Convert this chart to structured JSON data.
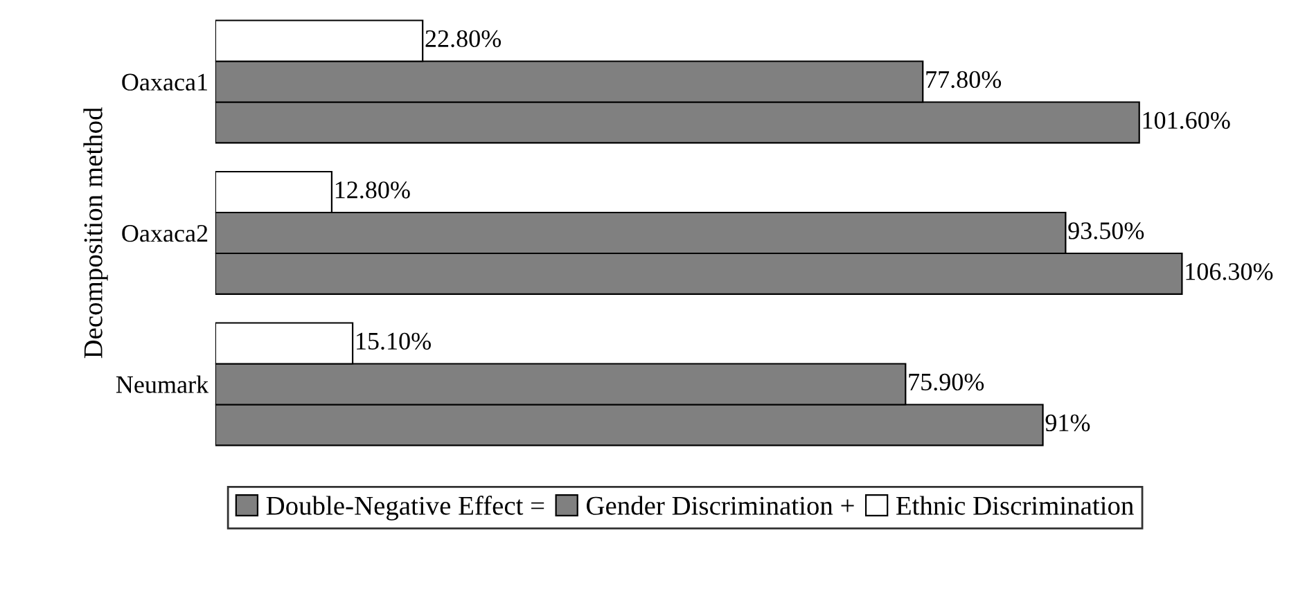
{
  "chart_data": {
    "type": "bar",
    "orientation": "horizontal",
    "ylabel": "Decomposition method",
    "categories": [
      "Oaxaca1",
      "Oaxaca2",
      "Neumark"
    ],
    "series": [
      {
        "name": "Double-Negative Effect =",
        "color": "#808080",
        "values": [
          101.6,
          106.3,
          91
        ],
        "value_labels": [
          "101.60%",
          "106.30%",
          "91%"
        ]
      },
      {
        "name": "Gender Discrimination +",
        "color": "#808080",
        "values": [
          77.8,
          93.5,
          75.9
        ],
        "value_labels": [
          "77.80%",
          "93.50%",
          "75.90%"
        ]
      },
      {
        "name": "Ethnic Discrimination",
        "color": "#ffffff",
        "values": [
          22.8,
          12.8,
          15.1
        ],
        "value_labels": [
          "22.80%",
          "12.80%",
          "15.10%"
        ]
      }
    ],
    "legend": "bottom",
    "grid": false
  }
}
